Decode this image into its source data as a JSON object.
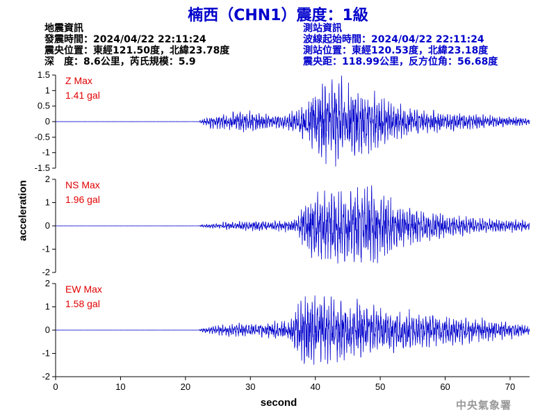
{
  "title": "楠西（CHN1）震度：1級",
  "earthquake_info": {
    "heading": "地震資訊",
    "origin_time": "發震時間：2024/04/22 22:11:24",
    "epicenter": "震央位置：東經121.50度，北緯23.78度",
    "depth_magnitude": "深　度：8.6公里，芮氏規模：5.9"
  },
  "station_info": {
    "heading": "測站資訊",
    "wave_start": "波線起始時間：2024/04/22 22:11:24",
    "station_location": "測站位置：東經120.53度，北緯23.18度",
    "distance_azimuth": "震央距：118.99公里，反方位角：56.68度"
  },
  "agency": "中央氣象署",
  "colors": {
    "title": "#0000cc",
    "trace": "#0000cc",
    "max_label": "#e00000",
    "agency": "#999999"
  },
  "chart_data": {
    "type": "line",
    "xlabel": "second",
    "ylabel": "acceleration",
    "xlim": [
      0,
      73
    ],
    "x_ticks": [
      0,
      10,
      20,
      30,
      40,
      50,
      60,
      70
    ],
    "grid": false,
    "panels": [
      {
        "name": "Z",
        "max_label": "Z Max",
        "max_value": "1.41 gal",
        "ylim": [
          -1.5,
          1.5
        ],
        "y_ticks": [
          -1.5,
          -1,
          -0.5,
          0,
          0.5,
          1,
          1.5
        ],
        "y_tick_labels": [
          "-1.5",
          "-1",
          "-0.5",
          "0",
          "0.5",
          "1",
          "1.5"
        ],
        "envelope": [
          [
            0,
            0.002
          ],
          [
            22,
            0.002
          ],
          [
            22.3,
            0.05
          ],
          [
            24,
            0.2
          ],
          [
            26,
            0.28
          ],
          [
            28,
            0.3
          ],
          [
            29.5,
            0.38
          ],
          [
            31,
            0.28
          ],
          [
            34,
            0.22
          ],
          [
            37,
            0.35
          ],
          [
            38.5,
            0.55
          ],
          [
            39.5,
            0.8
          ],
          [
            41,
            1.15
          ],
          [
            43,
            1.35
          ],
          [
            45,
            1.1
          ],
          [
            48,
            0.95
          ],
          [
            50,
            0.75
          ],
          [
            53,
            0.5
          ],
          [
            56,
            0.4
          ],
          [
            60,
            0.3
          ],
          [
            65,
            0.22
          ],
          [
            70,
            0.15
          ],
          [
            73,
            0.1
          ]
        ]
      },
      {
        "name": "NS",
        "max_label": "NS Max",
        "max_value": "1.96 gal",
        "ylim": [
          -2,
          2
        ],
        "y_ticks": [
          -2,
          -1,
          0,
          1,
          2
        ],
        "y_tick_labels": [
          "-2",
          "-1",
          "0",
          "1",
          "2"
        ],
        "envelope": [
          [
            0,
            0.002
          ],
          [
            22,
            0.002
          ],
          [
            22.5,
            0.05
          ],
          [
            26,
            0.15
          ],
          [
            30,
            0.2
          ],
          [
            34,
            0.22
          ],
          [
            37,
            0.3
          ],
          [
            38.5,
            1.0
          ],
          [
            40,
            1.4
          ],
          [
            42,
            1.5
          ],
          [
            44,
            1.4
          ],
          [
            46,
            1.3
          ],
          [
            48,
            1.9
          ],
          [
            50,
            1.3
          ],
          [
            53,
            0.9
          ],
          [
            56,
            0.7
          ],
          [
            60,
            0.5
          ],
          [
            65,
            0.3
          ],
          [
            70,
            0.25
          ],
          [
            73,
            0.2
          ]
        ]
      },
      {
        "name": "EW",
        "max_label": "EW Max",
        "max_value": "1.58 gal",
        "ylim": [
          -2,
          2
        ],
        "y_ticks": [
          -2,
          -1,
          0,
          1,
          2
        ],
        "y_tick_labels": [
          "-2",
          "-1",
          "0",
          "1",
          "2"
        ],
        "envelope": [
          [
            0,
            0.002
          ],
          [
            22,
            0.002
          ],
          [
            22.5,
            0.08
          ],
          [
            25,
            0.2
          ],
          [
            28,
            0.28
          ],
          [
            32,
            0.3
          ],
          [
            36,
            0.4
          ],
          [
            38,
            1.3
          ],
          [
            39,
            1.55
          ],
          [
            41,
            1.3
          ],
          [
            44,
            1.25
          ],
          [
            47,
            1.1
          ],
          [
            50,
            0.9
          ],
          [
            53,
            0.9
          ],
          [
            56,
            0.7
          ],
          [
            59,
            0.6
          ],
          [
            62,
            0.55
          ],
          [
            66,
            0.45
          ],
          [
            70,
            0.35
          ],
          [
            73,
            0.2
          ]
        ]
      }
    ]
  }
}
